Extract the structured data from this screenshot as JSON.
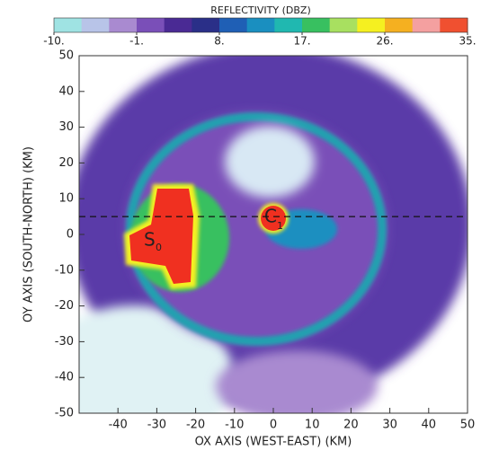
{
  "chart_data": {
    "type": "radar-field",
    "xlabel": "OX AXIS (WEST-EAST) (KM)",
    "ylabel": "OY AXIS (SOUTH-NORTH) (KM)",
    "xlim": [
      -50,
      50
    ],
    "xticks": [
      -40,
      -30,
      -20,
      -10,
      0,
      10,
      20,
      30,
      40,
      50
    ],
    "ylim": [
      -50,
      50
    ],
    "yticks": [
      -50,
      -40,
      -30,
      -20,
      -10,
      0,
      10,
      20,
      30,
      40,
      50
    ],
    "hlines": [
      5
    ],
    "annotations": [
      {
        "text": "S",
        "sub": "0"
      },
      {
        "text": "C",
        "sub": "1"
      }
    ],
    "colorbar": {
      "label": "REFLECTIVITY (DBZ)",
      "lim": [
        -10,
        35
      ],
      "colors": [
        "#9fe3e3",
        "#b8c4e8",
        "#a98ad0",
        "#7a4fb8",
        "#4a2a94",
        "#2a2f88",
        "#1f5fb5",
        "#1a8fc0",
        "#20b8b0",
        "#38c060",
        "#a8e060",
        "#f5f020",
        "#f5b020",
        "#f4a0a0",
        "#f05030"
      ],
      "ticks": [
        {
          "value": -10,
          "label": "-10."
        },
        {
          "value": -1,
          "label": "-1."
        },
        {
          "value": 8,
          "label": "8."
        },
        {
          "value": 17,
          "label": "17."
        },
        {
          "value": 26,
          "label": "26."
        },
        {
          "value": 35,
          "label": "35."
        }
      ]
    }
  }
}
